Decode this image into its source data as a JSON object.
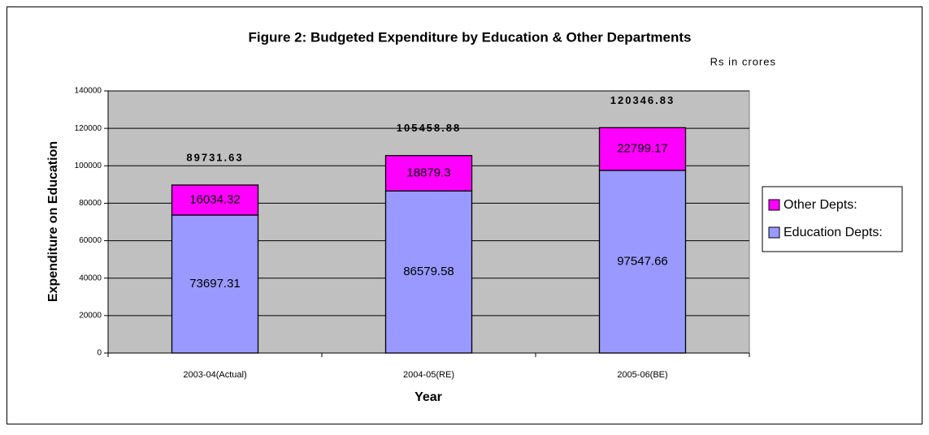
{
  "chart_data": {
    "type": "stacked_bar",
    "title": "Figure 2: Budgeted Expenditure by Education & Other Departments",
    "subtitle": "Rs in crores",
    "xlabel": "Year",
    "ylabel": "Expenditure on Education",
    "categories": [
      "2003-04(Actual)",
      "2004-05(RE)",
      "2005-06(BE)"
    ],
    "series": [
      {
        "name": "Education Depts:",
        "color": "#9999ff",
        "values": [
          73697.31,
          86579.58,
          97547.66
        ]
      },
      {
        "name": "Other Depts:",
        "color": "#ff00ff",
        "values": [
          16034.32,
          18879.3,
          22799.17
        ]
      }
    ],
    "totals": [
      89731.63,
      105458.88,
      120346.83
    ],
    "ylim": [
      0,
      140000
    ],
    "yticks": [
      0,
      20000,
      40000,
      60000,
      80000,
      100000,
      120000,
      140000
    ],
    "grid": true,
    "legend": "right"
  }
}
